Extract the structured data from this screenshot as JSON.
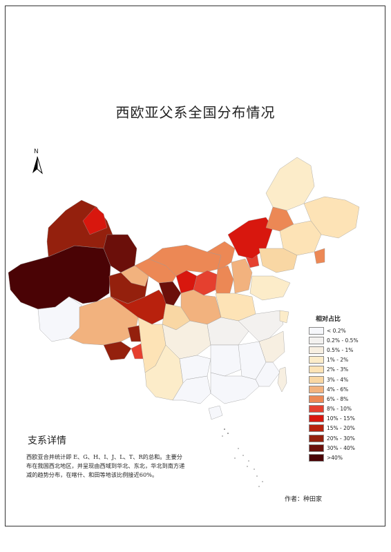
{
  "title": "西欧亚父系全国分布情况",
  "north_label": "N",
  "legend": {
    "title": "相对占比",
    "items": [
      {
        "label": "< 0.2%",
        "color": "#f6f7fb"
      },
      {
        "label": "0.2% - 0.5%",
        "color": "#f3f1ef"
      },
      {
        "label": "0.5% - 1%",
        "color": "#f7efe1"
      },
      {
        "label": "1% - 2%",
        "color": "#fcecc9"
      },
      {
        "label": "2% - 3%",
        "color": "#fde3b6"
      },
      {
        "label": "3% - 4%",
        "color": "#f9d7a4"
      },
      {
        "label": "4% - 6%",
        "color": "#f2b27e"
      },
      {
        "label": "6% - 8%",
        "color": "#ec8855"
      },
      {
        "label": "8% - 10%",
        "color": "#e5402f"
      },
      {
        "label": "10% - 15%",
        "color": "#d8170e"
      },
      {
        "label": "15% - 20%",
        "color": "#b8210d"
      },
      {
        "label": "20% - 30%",
        "color": "#94200d"
      },
      {
        "label": "30% - 40%",
        "color": "#6b0f0a"
      },
      {
        "label": ">40%",
        "color": "#4a0305"
      }
    ]
  },
  "detail": {
    "heading": "支系详情",
    "text": "西欧亚合并统计即 E、G、H、I、J、L、T、R的总和。主要分布在我国西北地区，并呈现由西域到华北、东北，华北到南方递减的趋势分布，在喀什、和田等地该比例接近60%。"
  },
  "author": "作者：种田家"
}
